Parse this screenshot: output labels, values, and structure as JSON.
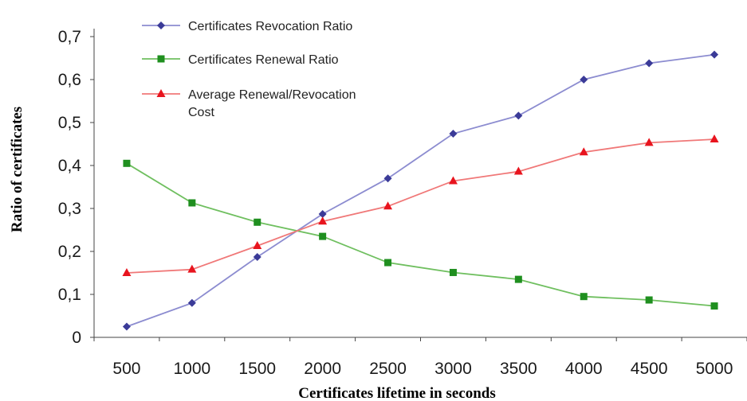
{
  "chart_data": {
    "type": "line",
    "xlabel": "Certificates lifetime in seconds",
    "ylabel": "Ratio of certificates",
    "categories": [
      "500",
      "1000",
      "1500",
      "2000",
      "2500",
      "3000",
      "3500",
      "4000",
      "4500",
      "5000"
    ],
    "yticks": [
      "0",
      "0,1",
      "0,2",
      "0,3",
      "0,4",
      "0,5",
      "0,6",
      "0,7"
    ],
    "ylim": [
      0,
      0.7
    ],
    "grid": false,
    "legend_position": "top-left",
    "series": [
      {
        "name": "Certificates Revocation Ratio",
        "color": "#3b3b98",
        "line_color": "#8c8cd0",
        "marker": "diamond",
        "values": [
          0.025,
          0.08,
          0.187,
          0.287,
          0.37,
          0.474,
          0.516,
          0.6,
          0.638,
          0.658
        ]
      },
      {
        "name": "Certificates Renewal Ratio",
        "color": "#1f8f1f",
        "line_color": "#6fbf5f",
        "marker": "square",
        "values": [
          0.405,
          0.313,
          0.268,
          0.235,
          0.174,
          0.151,
          0.135,
          0.095,
          0.087,
          0.073
        ]
      },
      {
        "name": "Average Renewal/Revocation",
        "name_line2": "Cost",
        "color": "#e8141e",
        "line_color": "#f07878",
        "marker": "triangle",
        "values": [
          0.15,
          0.158,
          0.213,
          0.27,
          0.305,
          0.364,
          0.386,
          0.431,
          0.453,
          0.461
        ]
      }
    ]
  }
}
